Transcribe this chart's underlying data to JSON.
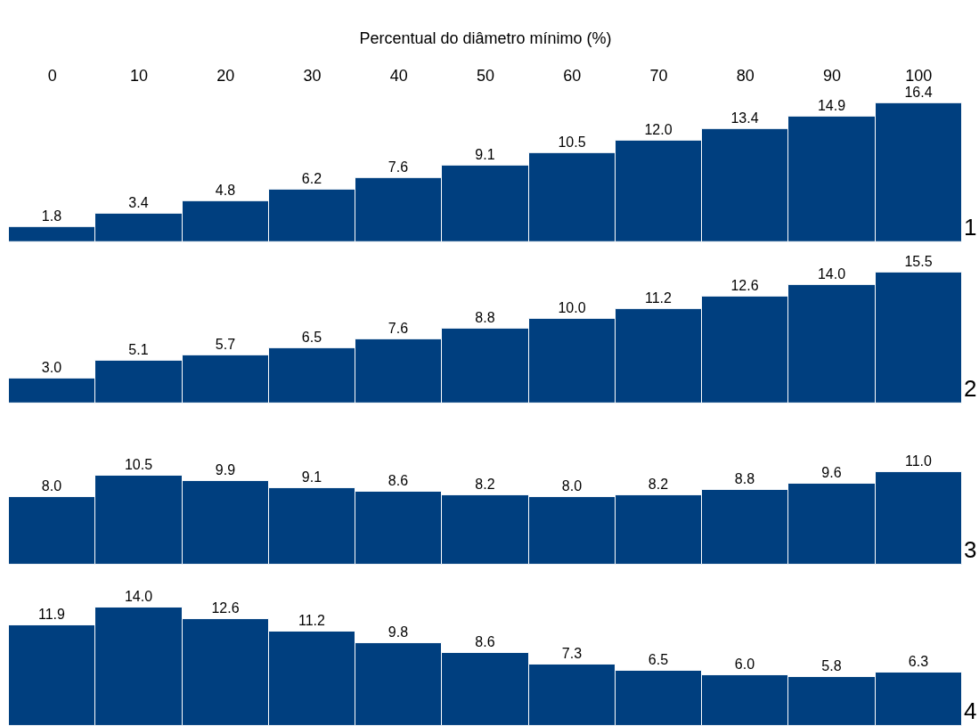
{
  "chart_data": [
    {
      "type": "bar",
      "xlabel": "Percentual do diâmetro mínimo (%)",
      "categories": [
        "0",
        "10",
        "20",
        "30",
        "40",
        "50",
        "60",
        "70",
        "80",
        "90",
        "100"
      ],
      "values": [
        1.8,
        3.4,
        4.8,
        6.2,
        7.6,
        9.1,
        10.5,
        12.0,
        13.4,
        14.9,
        16.4
      ],
      "value_labels": [
        "1.8",
        "3.4",
        "4.8",
        "6.2",
        "7.6",
        "9.1",
        "10.5",
        "12.0",
        "13.4",
        "14.9",
        "16.4"
      ],
      "color": "#003f7f",
      "tick_labels": "x",
      "annotations": [
        "1"
      ]
    },
    {
      "type": "bar",
      "categories": [
        "0",
        "10",
        "20",
        "30",
        "40",
        "50",
        "60",
        "70",
        "80",
        "90",
        "100"
      ],
      "values": [
        3.0,
        5.1,
        5.7,
        6.5,
        7.6,
        8.8,
        10.0,
        11.2,
        12.6,
        14.0,
        15.5
      ],
      "value_labels": [
        "3.0",
        "5.1",
        "5.7",
        "6.5",
        "7.6",
        "8.8",
        "10.0",
        "11.2",
        "12.6",
        "14.0",
        "15.5"
      ],
      "color": "#003f7f",
      "tick_labels": false,
      "annotations": [
        "2"
      ]
    },
    {
      "type": "bar",
      "categories": [
        "0",
        "10",
        "20",
        "30",
        "40",
        "50",
        "60",
        "70",
        "80",
        "90",
        "100"
      ],
      "values": [
        8.0,
        10.5,
        9.9,
        9.1,
        8.6,
        8.2,
        8.0,
        8.2,
        8.8,
        9.6,
        11.0
      ],
      "value_labels": [
        "8.0",
        "10.5",
        "9.9",
        "9.1",
        "8.6",
        "8.2",
        "8.0",
        "8.2",
        "8.8",
        "9.6",
        "11.0"
      ],
      "color": "#003f7f",
      "tick_labels": false,
      "annotations": [
        "3"
      ]
    },
    {
      "type": "bar",
      "categories": [
        "0",
        "10",
        "20",
        "30",
        "40",
        "50",
        "60",
        "70",
        "80",
        "90",
        "100"
      ],
      "values": [
        11.9,
        14.0,
        12.6,
        11.2,
        9.8,
        8.6,
        7.3,
        6.5,
        6.0,
        5.8,
        6.3
      ],
      "value_labels": [
        "11.9",
        "14.0",
        "12.6",
        "11.2",
        "9.8",
        "8.6",
        "7.3",
        "6.5",
        "6.0",
        "5.8",
        "6.3"
      ],
      "color": "#003f7f",
      "tick_labels": false,
      "annotations": [
        "4"
      ]
    }
  ]
}
